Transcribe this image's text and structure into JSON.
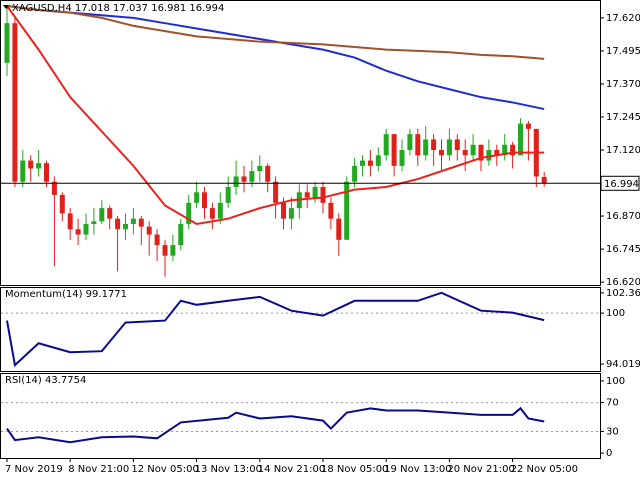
{
  "chart_data": [
    {
      "type": "candlestick",
      "title": "XAGUSD,H4  17.018 17.037 16.981 16.994",
      "categories": [
        "7 Nov 2019",
        null,
        null,
        null,
        null,
        null,
        null,
        null,
        "8 Nov 21:00",
        null,
        null,
        null,
        null,
        null,
        null,
        null,
        "12 Nov 05:00",
        null,
        null,
        null,
        null,
        null,
        null,
        null,
        "13 Nov 13:00",
        null,
        null,
        null,
        null,
        null,
        null,
        null,
        "14 Nov 21:00",
        null,
        null,
        null,
        null,
        null,
        null,
        null,
        "18 Nov 05:00",
        null,
        null,
        null,
        null,
        null,
        null,
        null,
        "19 Nov 13:00",
        null,
        null,
        null,
        null,
        null,
        null,
        null,
        "20 Nov 21:00",
        null,
        null,
        null,
        null,
        null,
        null,
        null,
        "22 Nov 05:00",
        null,
        null,
        null,
        null
      ],
      "open": [
        17.45,
        17.6,
        17.0,
        17.08,
        17.05,
        17.07,
        17.0,
        16.95,
        16.88,
        16.82,
        16.8,
        16.84,
        16.85,
        16.9,
        16.86,
        16.82,
        16.84,
        16.86,
        16.83,
        16.8,
        16.76,
        16.72,
        16.76,
        16.84,
        16.92,
        16.96,
        16.9,
        16.86,
        16.92,
        16.98,
        17.02,
        17.0,
        17.04,
        17.06,
        17.0,
        16.92,
        16.86,
        16.9,
        16.96,
        16.94,
        16.98,
        16.92,
        16.86,
        16.78,
        17.0,
        17.06,
        17.08,
        17.06,
        17.1,
        17.18,
        17.06,
        17.12,
        17.18,
        17.1,
        17.16,
        17.12,
        17.1,
        17.16,
        17.12,
        17.1,
        17.14,
        17.08,
        17.12,
        17.1,
        17.14,
        17.1,
        17.22,
        17.2,
        17.018
      ],
      "high": [
        17.66,
        17.62,
        17.12,
        17.1,
        17.12,
        17.08,
        17.02,
        16.96,
        16.9,
        16.86,
        16.88,
        16.9,
        16.93,
        16.91,
        16.87,
        16.88,
        16.9,
        16.87,
        16.85,
        16.82,
        16.78,
        16.8,
        16.86,
        16.95,
        17.0,
        16.98,
        16.92,
        16.96,
        17.02,
        17.08,
        17.06,
        17.08,
        17.1,
        17.07,
        17.02,
        16.94,
        16.94,
        16.99,
        16.99,
        17.0,
        17.0,
        16.94,
        16.88,
        17.02,
        17.09,
        17.1,
        17.12,
        17.13,
        17.2,
        17.18,
        17.16,
        17.2,
        17.2,
        17.21,
        17.18,
        17.16,
        17.2,
        17.18,
        17.16,
        17.18,
        17.14,
        17.16,
        17.14,
        17.18,
        17.15,
        17.24,
        17.23,
        17.2,
        17.037
      ],
      "low": [
        17.4,
        16.98,
        16.98,
        17.0,
        17.02,
        16.98,
        16.68,
        16.85,
        16.78,
        16.76,
        16.78,
        16.8,
        16.84,
        16.82,
        16.66,
        16.78,
        16.8,
        16.76,
        16.72,
        16.7,
        16.64,
        16.7,
        16.74,
        16.82,
        16.9,
        16.86,
        16.82,
        16.84,
        16.9,
        16.95,
        16.96,
        16.98,
        17.0,
        16.96,
        16.86,
        16.82,
        16.82,
        16.86,
        16.9,
        16.92,
        16.88,
        16.82,
        16.72,
        16.78,
        16.98,
        17.02,
        17.02,
        17.04,
        17.08,
        17.02,
        17.04,
        17.1,
        17.06,
        17.08,
        17.06,
        17.04,
        17.08,
        17.08,
        17.04,
        17.08,
        17.04,
        17.06,
        17.06,
        17.08,
        17.05,
        17.1,
        17.08,
        16.98,
        16.981
      ],
      "close": [
        17.6,
        17.0,
        17.08,
        17.05,
        17.07,
        17.0,
        16.95,
        16.88,
        16.82,
        16.8,
        16.84,
        16.85,
        16.9,
        16.86,
        16.82,
        16.84,
        16.86,
        16.83,
        16.8,
        16.76,
        16.72,
        16.76,
        16.84,
        16.92,
        16.96,
        16.9,
        16.86,
        16.92,
        16.98,
        17.02,
        17.0,
        17.04,
        17.06,
        17.0,
        16.92,
        16.86,
        16.9,
        16.96,
        16.94,
        16.98,
        16.92,
        16.86,
        16.78,
        17.0,
        17.06,
        17.08,
        17.06,
        17.1,
        17.18,
        17.06,
        17.12,
        17.18,
        17.1,
        17.16,
        17.12,
        17.1,
        17.16,
        17.12,
        17.1,
        17.14,
        17.08,
        17.12,
        17.1,
        17.14,
        17.1,
        17.22,
        17.2,
        17.02,
        16.994
      ],
      "up_color": "#22a822",
      "down_color": "#e0201b",
      "lines": [
        {
          "color": "#e8231e",
          "x": [
            0,
            4,
            8,
            12,
            16,
            20,
            24,
            28,
            32,
            36,
            40,
            44,
            48,
            52,
            56,
            60,
            64,
            68
          ],
          "values": [
            17.665,
            17.5,
            17.32,
            17.19,
            17.06,
            16.91,
            16.84,
            16.86,
            16.9,
            16.93,
            16.94,
            16.97,
            16.98,
            17.01,
            17.05,
            17.09,
            17.11,
            17.11
          ]
        },
        {
          "color": "#1f2ccf",
          "x": [
            0,
            4,
            8,
            12,
            16,
            20,
            24,
            28,
            32,
            36,
            40,
            44,
            48,
            52,
            56,
            60,
            64,
            68
          ],
          "values": [
            17.665,
            17.65,
            17.64,
            17.63,
            17.62,
            17.6,
            17.58,
            17.56,
            17.54,
            17.52,
            17.5,
            17.47,
            17.42,
            17.38,
            17.35,
            17.32,
            17.3,
            17.275
          ]
        },
        {
          "color": "#a0522d",
          "x": [
            0,
            4,
            8,
            12,
            16,
            20,
            24,
            28,
            32,
            36,
            40,
            44,
            48,
            52,
            56,
            60,
            64,
            68
          ],
          "values": [
            17.665,
            17.65,
            17.64,
            17.62,
            17.59,
            17.57,
            17.55,
            17.54,
            17.53,
            17.525,
            17.52,
            17.51,
            17.5,
            17.495,
            17.49,
            17.48,
            17.475,
            17.465
          ]
        }
      ],
      "last_price": 16.994,
      "ylim": [
        16.609,
        17.684
      ],
      "yticks": [
        {
          "value": 17.62,
          "label": "17.620"
        },
        {
          "value": 17.495,
          "label": "17.495"
        },
        {
          "value": 17.37,
          "label": "17.370"
        },
        {
          "value": 17.245,
          "label": "17.245"
        },
        {
          "value": 17.12,
          "label": "17.120"
        },
        {
          "value": 16.87,
          "label": "16.870"
        },
        {
          "value": 16.745,
          "label": "16.745"
        },
        {
          "value": 16.62,
          "label": "16.620"
        }
      ]
    },
    {
      "type": "line",
      "title": "Momentum(14) 99.1771",
      "color": "#0a0a8c",
      "x": [
        0,
        1,
        4,
        8,
        12,
        15,
        20,
        22,
        24,
        28,
        32,
        36,
        40,
        44,
        48,
        52,
        55,
        60,
        64,
        68
      ],
      "values": [
        99.12,
        93.9,
        96.46,
        95.41,
        95.53,
        98.89,
        99.12,
        101.44,
        100.97,
        101.44,
        101.9,
        100.28,
        99.7,
        101.44,
        101.44,
        101.44,
        102.37,
        100.28,
        100.05,
        99.1771
      ],
      "ylim": [
        93.208,
        102.94
      ],
      "yticks": [
        102.365,
        100,
        94.0192
      ],
      "levels": [
        100
      ]
    },
    {
      "type": "line",
      "title": "RSI(14) 43.7754",
      "color": "#0a0a8c",
      "x": [
        0,
        1,
        4,
        8,
        12,
        16,
        19,
        22,
        28,
        29,
        32,
        36,
        40,
        41,
        43,
        46,
        48,
        52,
        56,
        60,
        64,
        65,
        66,
        68
      ],
      "values": [
        34,
        18,
        22,
        15,
        22,
        23,
        20.5,
        42.5,
        49,
        56,
        48,
        51,
        45,
        34,
        56,
        62,
        59,
        59,
        56,
        53,
        53,
        62,
        48,
        43.7754
      ],
      "ylim": [
        -6.8,
        109.6
      ],
      "yticks": [
        100,
        70,
        30,
        0
      ],
      "levels": [
        70,
        30
      ]
    }
  ]
}
